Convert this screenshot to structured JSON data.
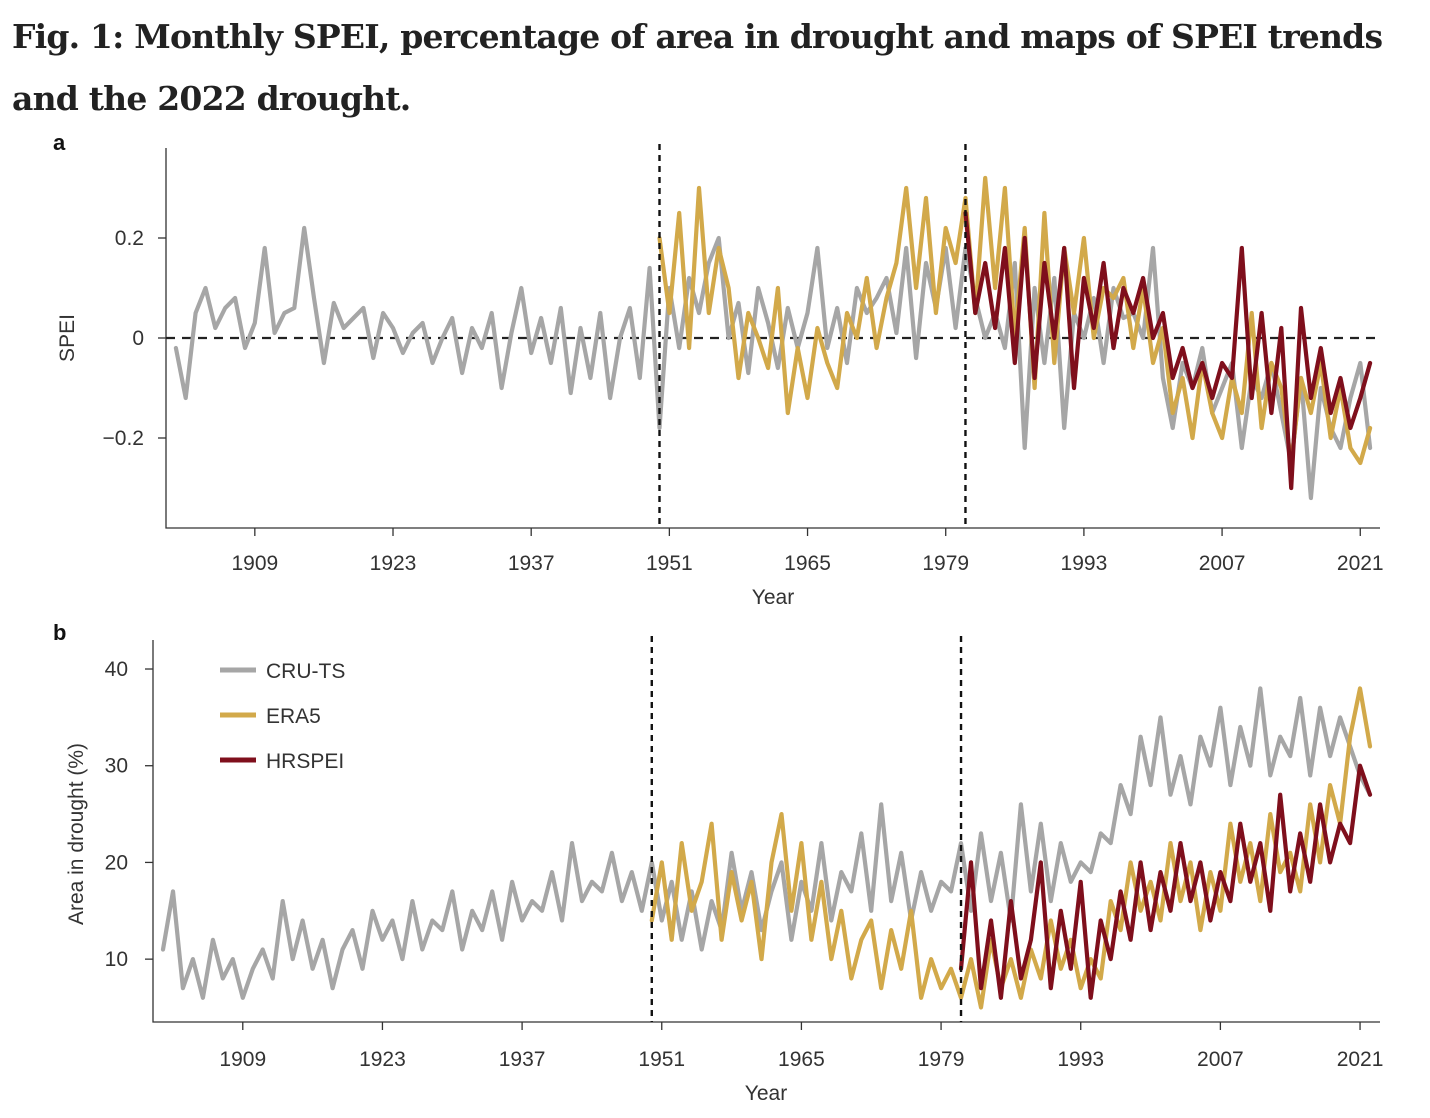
{
  "figure": {
    "title": "Fig. 1: Monthly SPEI, percentage of area in drought and maps of SPEI trends and the 2022 drought."
  },
  "colors": {
    "CRU-TS": "#a6a6a6",
    "ERA5": "#d2a94a",
    "HRSPEI": "#7f0f1c"
  },
  "chart_data": [
    {
      "panel": "a",
      "type": "line",
      "title": "",
      "xlabel": "Year",
      "ylabel": "SPEI",
      "xlim": [
        1900,
        2023
      ],
      "ylim": [
        -0.38,
        0.38
      ],
      "xticks": [
        1909,
        1923,
        1937,
        1951,
        1965,
        1979,
        1993,
        2007,
        2021
      ],
      "yticks": [
        -0.2,
        0,
        0.2
      ],
      "ytick_labels": [
        "−0.2",
        "0",
        "0.2"
      ],
      "vlines": [
        1950,
        1981
      ],
      "hline": 0,
      "grid": false,
      "series": [
        {
          "name": "CRU-TS",
          "x": [
            1901,
            1902,
            1903,
            1904,
            1905,
            1906,
            1907,
            1908,
            1909,
            1910,
            1911,
            1912,
            1913,
            1914,
            1915,
            1916,
            1917,
            1918,
            1919,
            1920,
            1921,
            1922,
            1923,
            1924,
            1925,
            1926,
            1927,
            1928,
            1929,
            1930,
            1931,
            1932,
            1933,
            1934,
            1935,
            1936,
            1937,
            1938,
            1939,
            1940,
            1941,
            1942,
            1943,
            1944,
            1945,
            1946,
            1947,
            1948,
            1949,
            1950,
            1951,
            1952,
            1953,
            1954,
            1955,
            1956,
            1957,
            1958,
            1959,
            1960,
            1961,
            1962,
            1963,
            1964,
            1965,
            1966,
            1967,
            1968,
            1969,
            1970,
            1971,
            1972,
            1973,
            1974,
            1975,
            1976,
            1977,
            1978,
            1979,
            1980,
            1981,
            1982,
            1983,
            1984,
            1985,
            1986,
            1987,
            1988,
            1989,
            1990,
            1991,
            1992,
            1993,
            1994,
            1995,
            1996,
            1997,
            1998,
            1999,
            2000,
            2001,
            2002,
            2003,
            2004,
            2005,
            2006,
            2007,
            2008,
            2009,
            2010,
            2011,
            2012,
            2013,
            2014,
            2015,
            2016,
            2017,
            2018,
            2019,
            2020,
            2021,
            2022
          ],
          "y": [
            -0.02,
            -0.12,
            0.05,
            0.1,
            0.02,
            0.06,
            0.08,
            -0.02,
            0.03,
            0.18,
            0.01,
            0.05,
            0.06,
            0.22,
            0.08,
            -0.05,
            0.07,
            0.02,
            0.04,
            0.06,
            -0.04,
            0.05,
            0.02,
            -0.03,
            0.01,
            0.03,
            -0.05,
            0.0,
            0.04,
            -0.07,
            0.02,
            -0.02,
            0.05,
            -0.1,
            0.01,
            0.1,
            -0.03,
            0.04,
            -0.05,
            0.06,
            -0.11,
            0.02,
            -0.08,
            0.05,
            -0.12,
            0.0,
            0.06,
            -0.08,
            0.14,
            -0.18,
            0.1,
            -0.02,
            0.12,
            0.05,
            0.15,
            0.2,
            0.0,
            0.07,
            -0.07,
            0.1,
            0.03,
            -0.06,
            0.06,
            -0.02,
            0.05,
            0.18,
            -0.02,
            0.06,
            -0.05,
            0.1,
            0.05,
            0.08,
            0.12,
            0.01,
            0.18,
            -0.04,
            0.15,
            0.06,
            0.18,
            0.02,
            0.18,
            0.08,
            0.0,
            0.05,
            -0.02,
            0.15,
            -0.22,
            0.1,
            -0.05,
            0.12,
            -0.18,
            0.05,
            0.0,
            0.08,
            -0.05,
            0.1,
            0.04,
            0.05,
            0.0,
            0.18,
            -0.08,
            -0.18,
            -0.05,
            -0.1,
            -0.02,
            -0.15,
            -0.1,
            -0.05,
            -0.22,
            -0.08,
            -0.12,
            -0.05,
            -0.15,
            -0.25,
            -0.08,
            -0.32,
            -0.1,
            -0.18,
            -0.22,
            -0.12,
            -0.05,
            -0.22
          ]
        },
        {
          "name": "ERA5",
          "x": [
            1950,
            1951,
            1952,
            1953,
            1954,
            1955,
            1956,
            1957,
            1958,
            1959,
            1960,
            1961,
            1962,
            1963,
            1964,
            1965,
            1966,
            1967,
            1968,
            1969,
            1970,
            1971,
            1972,
            1973,
            1974,
            1975,
            1976,
            1977,
            1978,
            1979,
            1980,
            1981,
            1982,
            1983,
            1984,
            1985,
            1986,
            1987,
            1988,
            1989,
            1990,
            1991,
            1992,
            1993,
            1994,
            1995,
            1996,
            1997,
            1998,
            1999,
            2000,
            2001,
            2002,
            2003,
            2004,
            2005,
            2006,
            2007,
            2008,
            2009,
            2010,
            2011,
            2012,
            2013,
            2014,
            2015,
            2016,
            2017,
            2018,
            2019,
            2020,
            2021,
            2022
          ],
          "y": [
            0.2,
            0.05,
            0.25,
            -0.02,
            0.3,
            0.05,
            0.18,
            0.1,
            -0.08,
            0.05,
            0.0,
            -0.06,
            0.1,
            -0.15,
            -0.02,
            -0.12,
            0.02,
            -0.05,
            -0.1,
            0.05,
            0.0,
            0.12,
            -0.02,
            0.08,
            0.15,
            0.3,
            0.1,
            0.28,
            0.05,
            0.22,
            0.15,
            0.28,
            0.05,
            0.32,
            0.1,
            0.3,
            0.0,
            0.22,
            -0.1,
            0.25,
            -0.05,
            0.18,
            0.05,
            0.2,
            0.0,
            0.1,
            0.08,
            0.12,
            -0.02,
            0.1,
            -0.05,
            0.02,
            -0.15,
            -0.08,
            -0.2,
            -0.05,
            -0.15,
            -0.2,
            -0.08,
            -0.15,
            0.05,
            -0.18,
            -0.05,
            -0.1,
            -0.25,
            -0.08,
            -0.15,
            -0.05,
            -0.2,
            -0.1,
            -0.22,
            -0.25,
            -0.18
          ]
        },
        {
          "name": "HRSPEI",
          "x": [
            1981,
            1982,
            1983,
            1984,
            1985,
            1986,
            1987,
            1988,
            1989,
            1990,
            1991,
            1992,
            1993,
            1994,
            1995,
            1996,
            1997,
            1998,
            1999,
            2000,
            2001,
            2002,
            2003,
            2004,
            2005,
            2006,
            2007,
            2008,
            2009,
            2010,
            2011,
            2012,
            2013,
            2014,
            2015,
            2016,
            2017,
            2018,
            2019,
            2020,
            2021,
            2022
          ],
          "y": [
            0.25,
            0.05,
            0.15,
            0.02,
            0.18,
            -0.05,
            0.2,
            -0.08,
            0.15,
            0.0,
            0.18,
            -0.1,
            0.12,
            0.02,
            0.15,
            -0.02,
            0.1,
            0.05,
            0.12,
            0.0,
            0.05,
            -0.08,
            -0.02,
            -0.1,
            -0.05,
            -0.12,
            -0.05,
            -0.08,
            0.18,
            -0.12,
            0.05,
            -0.15,
            0.02,
            -0.3,
            0.06,
            -0.12,
            -0.02,
            -0.15,
            -0.08,
            -0.18,
            -0.12,
            -0.05
          ]
        }
      ]
    },
    {
      "panel": "b",
      "type": "line",
      "title": "",
      "xlabel": "Year",
      "ylabel": "Area in drought (%)",
      "xlim": [
        1900,
        2023
      ],
      "ylim": [
        3.5,
        43
      ],
      "xticks": [
        1909,
        1923,
        1937,
        1951,
        1965,
        1979,
        1993,
        2007,
        2021
      ],
      "yticks": [
        10,
        20,
        30,
        40
      ],
      "vlines": [
        1950,
        1981
      ],
      "grid": false,
      "legend_position": "top-left",
      "series": [
        {
          "name": "CRU-TS",
          "x": [
            1901,
            1902,
            1903,
            1904,
            1905,
            1906,
            1907,
            1908,
            1909,
            1910,
            1911,
            1912,
            1913,
            1914,
            1915,
            1916,
            1917,
            1918,
            1919,
            1920,
            1921,
            1922,
            1923,
            1924,
            1925,
            1926,
            1927,
            1928,
            1929,
            1930,
            1931,
            1932,
            1933,
            1934,
            1935,
            1936,
            1937,
            1938,
            1939,
            1940,
            1941,
            1942,
            1943,
            1944,
            1945,
            1946,
            1947,
            1948,
            1949,
            1950,
            1951,
            1952,
            1953,
            1954,
            1955,
            1956,
            1957,
            1958,
            1959,
            1960,
            1961,
            1962,
            1963,
            1964,
            1965,
            1966,
            1967,
            1968,
            1969,
            1970,
            1971,
            1972,
            1973,
            1974,
            1975,
            1976,
            1977,
            1978,
            1979,
            1980,
            1981,
            1982,
            1983,
            1984,
            1985,
            1986,
            1987,
            1988,
            1989,
            1990,
            1991,
            1992,
            1993,
            1994,
            1995,
            1996,
            1997,
            1998,
            1999,
            2000,
            2001,
            2002,
            2003,
            2004,
            2005,
            2006,
            2007,
            2008,
            2009,
            2010,
            2011,
            2012,
            2013,
            2014,
            2015,
            2016,
            2017,
            2018,
            2019,
            2020,
            2021,
            2022
          ],
          "y": [
            11,
            17,
            7,
            10,
            6,
            12,
            8,
            10,
            6,
            9,
            11,
            8,
            16,
            10,
            14,
            9,
            12,
            7,
            11,
            13,
            9,
            15,
            12,
            14,
            10,
            16,
            11,
            14,
            13,
            17,
            11,
            15,
            13,
            17,
            12,
            18,
            14,
            16,
            15,
            19,
            14,
            22,
            16,
            18,
            17,
            21,
            16,
            19,
            15,
            20,
            14,
            18,
            12,
            17,
            11,
            16,
            13,
            21,
            15,
            19,
            13,
            17,
            20,
            12,
            18,
            15,
            22,
            14,
            19,
            17,
            23,
            15,
            26,
            16,
            21,
            14,
            19,
            15,
            18,
            17,
            22,
            15,
            23,
            16,
            21,
            14,
            26,
            17,
            24,
            16,
            22,
            18,
            20,
            19,
            23,
            22,
            28,
            25,
            33,
            28,
            35,
            27,
            31,
            26,
            33,
            30,
            36,
            28,
            34,
            30,
            38,
            29,
            33,
            31,
            37,
            29,
            36,
            31,
            35,
            32,
            29,
            27
          ]
        },
        {
          "name": "ERA5",
          "x": [
            1950,
            1951,
            1952,
            1953,
            1954,
            1955,
            1956,
            1957,
            1958,
            1959,
            1960,
            1961,
            1962,
            1963,
            1964,
            1965,
            1966,
            1967,
            1968,
            1969,
            1970,
            1971,
            1972,
            1973,
            1974,
            1975,
            1976,
            1977,
            1978,
            1979,
            1980,
            1981,
            1982,
            1983,
            1984,
            1985,
            1986,
            1987,
            1988,
            1989,
            1990,
            1991,
            1992,
            1993,
            1994,
            1995,
            1996,
            1997,
            1998,
            1999,
            2000,
            2001,
            2002,
            2003,
            2004,
            2005,
            2006,
            2007,
            2008,
            2009,
            2010,
            2011,
            2012,
            2013,
            2014,
            2015,
            2016,
            2017,
            2018,
            2019,
            2020,
            2021,
            2022
          ],
          "y": [
            14,
            20,
            12,
            22,
            15,
            18,
            24,
            12,
            19,
            14,
            18,
            10,
            20,
            25,
            15,
            22,
            12,
            18,
            10,
            15,
            8,
            12,
            14,
            7,
            13,
            9,
            15,
            6,
            10,
            7,
            9,
            6,
            10,
            5,
            12,
            7,
            10,
            6,
            11,
            8,
            14,
            9,
            12,
            7,
            10,
            8,
            16,
            13,
            20,
            15,
            18,
            14,
            22,
            16,
            20,
            13,
            19,
            15,
            24,
            18,
            22,
            16,
            25,
            19,
            21,
            17,
            26,
            20,
            28,
            24,
            33,
            38,
            32
          ]
        },
        {
          "name": "HRSPEI",
          "x": [
            1981,
            1982,
            1983,
            1984,
            1985,
            1986,
            1987,
            1988,
            1989,
            1990,
            1991,
            1992,
            1993,
            1994,
            1995,
            1996,
            1997,
            1998,
            1999,
            2000,
            2001,
            2002,
            2003,
            2004,
            2005,
            2006,
            2007,
            2008,
            2009,
            2010,
            2011,
            2012,
            2013,
            2014,
            2015,
            2016,
            2017,
            2018,
            2019,
            2020,
            2021,
            2022
          ],
          "y": [
            9,
            20,
            7,
            14,
            6,
            16,
            8,
            12,
            20,
            7,
            15,
            9,
            18,
            6,
            14,
            10,
            17,
            12,
            20,
            13,
            19,
            15,
            22,
            16,
            20,
            14,
            19,
            16,
            24,
            18,
            22,
            15,
            27,
            17,
            23,
            18,
            26,
            20,
            24,
            22,
            30,
            27
          ]
        }
      ]
    }
  ]
}
